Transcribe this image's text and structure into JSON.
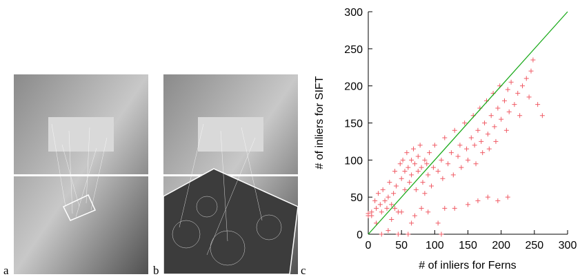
{
  "figure": {
    "panel_labels": [
      "a",
      "b",
      "c"
    ]
  },
  "chart_data": {
    "type": "scatter",
    "xlabel": "# of inliers for Ferns",
    "ylabel": "# of inliers for SIFT",
    "color": "#f05a64",
    "xlim": [
      0,
      300
    ],
    "ylim": [
      0,
      300
    ],
    "xticks": [
      0,
      50,
      100,
      150,
      200,
      250,
      300
    ],
    "yticks": [
      0,
      50,
      100,
      150,
      200,
      250,
      300
    ],
    "reference_line": {
      "x": [
        0,
        300
      ],
      "y": [
        0,
        300
      ],
      "color": "#1aaa1a"
    },
    "x": [
      5,
      5,
      10,
      12,
      15,
      18,
      20,
      22,
      25,
      28,
      30,
      32,
      35,
      38,
      40,
      42,
      45,
      48,
      50,
      52,
      55,
      55,
      58,
      60,
      62,
      65,
      65,
      68,
      70,
      72,
      75,
      75,
      78,
      80,
      82,
      85,
      88,
      90,
      92,
      95,
      98,
      100,
      105,
      110,
      112,
      115,
      120,
      125,
      128,
      130,
      135,
      138,
      140,
      145,
      148,
      150,
      155,
      158,
      160,
      162,
      165,
      168,
      170,
      172,
      175,
      178,
      180,
      182,
      185,
      188,
      190,
      192,
      195,
      198,
      200,
      205,
      208,
      210,
      212,
      215,
      220,
      225,
      228,
      232,
      238,
      242,
      245,
      248,
      255,
      262,
      20,
      30,
      45,
      60,
      65,
      70,
      80,
      90,
      105,
      110,
      115,
      130,
      150,
      165,
      180,
      195,
      210,
      12,
      35,
      50,
      0,
      0,
      85,
      40
    ],
    "values": [
      25,
      30,
      45,
      35,
      55,
      40,
      30,
      60,
      45,
      35,
      50,
      70,
      40,
      55,
      85,
      65,
      30,
      95,
      75,
      100,
      60,
      85,
      110,
      90,
      70,
      100,
      80,
      115,
      95,
      60,
      105,
      85,
      120,
      90,
      70,
      100,
      95,
      80,
      110,
      65,
      90,
      120,
      85,
      100,
      75,
      130,
      95,
      110,
      80,
      140,
      105,
      120,
      90,
      150,
      115,
      100,
      130,
      160,
      120,
      95,
      140,
      170,
      125,
      110,
      150,
      180,
      135,
      115,
      160,
      190,
      145,
      125,
      170,
      200,
      155,
      180,
      140,
      195,
      165,
      205,
      175,
      190,
      160,
      200,
      210,
      185,
      220,
      235,
      175,
      160,
      0,
      5,
      0,
      0,
      15,
      25,
      35,
      30,
      15,
      0,
      35,
      35,
      40,
      45,
      50,
      45,
      50,
      15,
      20,
      30,
      25,
      28,
      55,
      35
    ]
  }
}
